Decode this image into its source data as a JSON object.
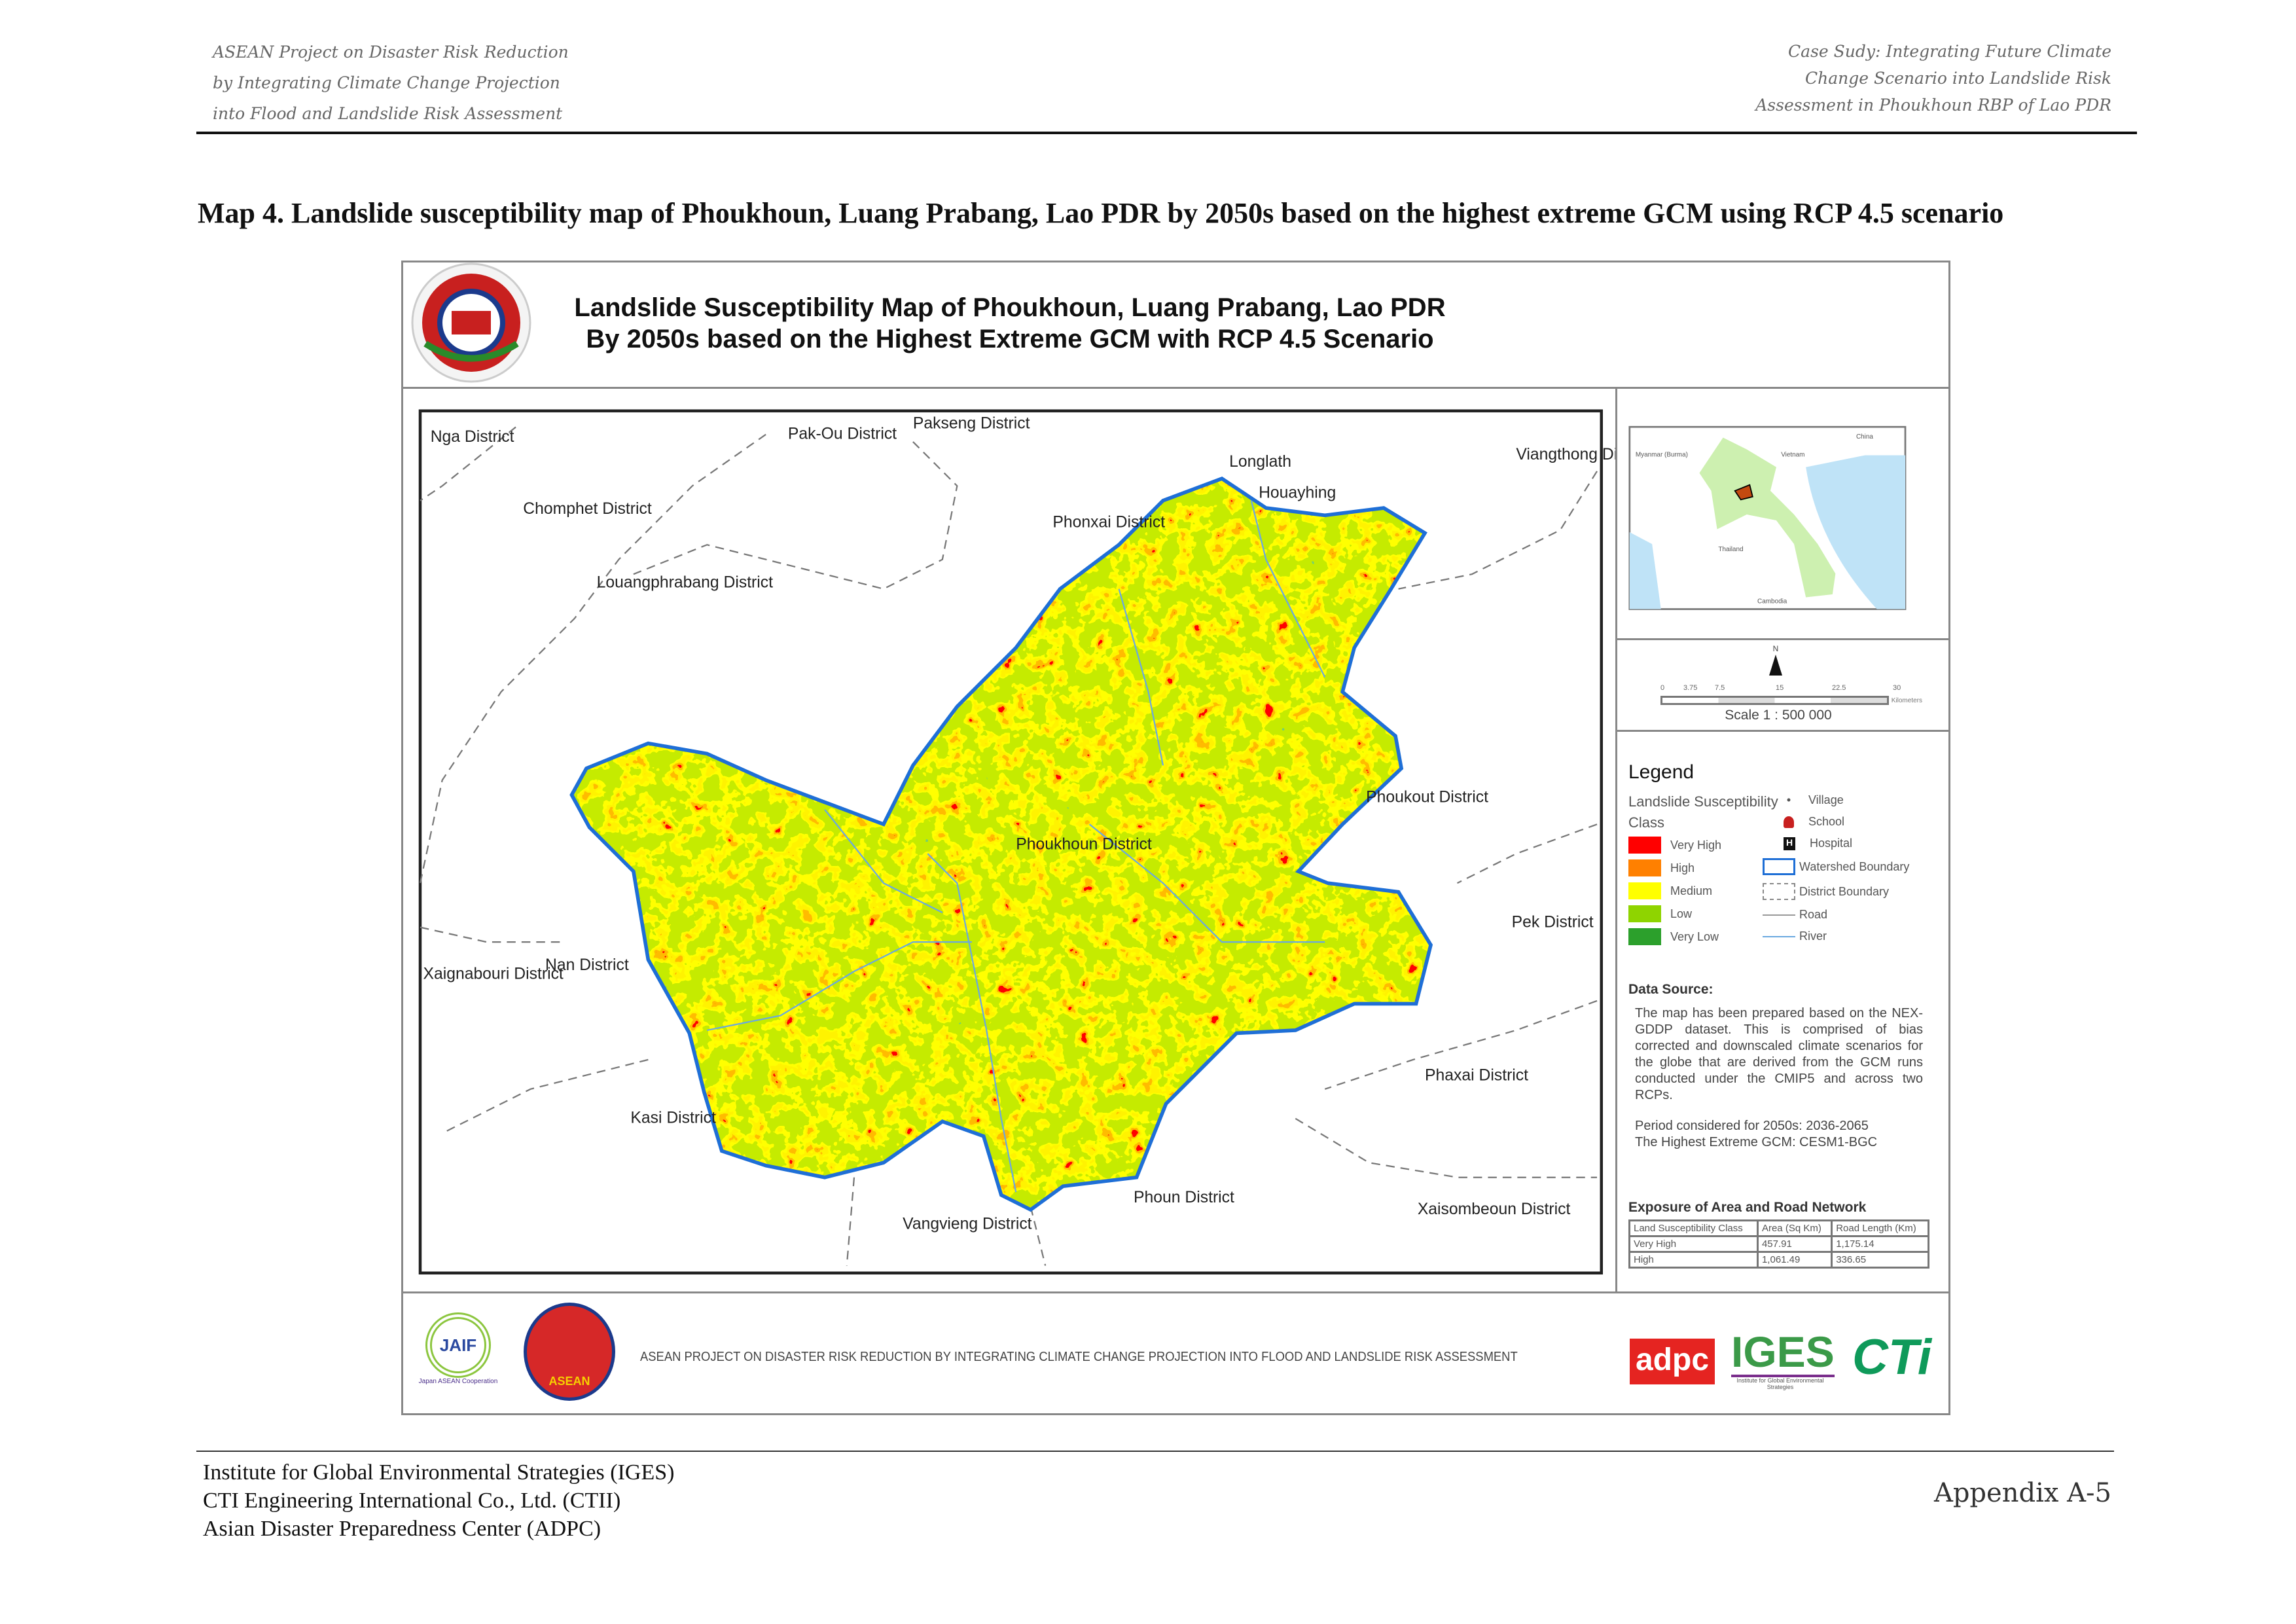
{
  "header": {
    "left_lines": [
      "ASEAN Project on Disaster Risk Reduction",
      "by Integrating Climate Change Projection",
      "into Flood and Landslide Risk Assessment"
    ],
    "right_lines": [
      "Case Sudy: Integrating Future Climate",
      "Change Scenario into Landslide Risk",
      "Assessment in Phoukhoun RBP of Lao PDR"
    ]
  },
  "caption": "Map 4. Landslide susceptibility map of Phoukhoun, Luang Prabang, Lao PDR by 2050s based on the highest extreme GCM using RCP 4.5 scenario",
  "map": {
    "title_lines": [
      "Landslide Susceptibility Map of Phoukhoun, Luang Prabang, Lao PDR",
      "By 2050s based on the Highest Extreme GCM with RCP 4.5 Scenario"
    ],
    "districts": [
      "Nga District",
      "Pak-Ou District",
      "Pakseng District",
      "Viangthong District",
      "Chomphet District",
      "Phonxai District",
      "Louangphrabang District",
      "Phoukout District",
      "Phoukhoun District",
      "Pek District",
      "Nan District",
      "Xaignabouri District",
      "Phaxai District",
      "Kasi District",
      "Phoun District",
      "Xaisombeoun District",
      "Vangvieng District",
      "Longlath",
      "Houayhing"
    ],
    "class_colors": {
      "very_low": "#2ca02c",
      "low": "#8fd400",
      "medium": "#ffff00",
      "high": "#ff8000",
      "very_high": "#ff0000"
    },
    "watershed_color": "#1f6fd6",
    "river_color": "#6aa8e0"
  },
  "inset": {
    "labels": [
      "Myanmar (Burma)",
      "Vietnam",
      "China",
      "Thailand",
      "Cambodia"
    ]
  },
  "scale": {
    "north": "N",
    "ticks": [
      "0",
      "3.75",
      "7.5",
      "15",
      "22.5",
      "30"
    ],
    "unit": "Kilometers",
    "text": "Scale 1 : 500 000"
  },
  "legend": {
    "title": "Legend",
    "class_heading": [
      "Landslide Susceptibility",
      "Class"
    ],
    "classes": [
      {
        "label": "Very High",
        "color": "#ff0000"
      },
      {
        "label": "High",
        "color": "#ff8000"
      },
      {
        "label": "Medium",
        "color": "#ffff00"
      },
      {
        "label": "Low",
        "color": "#8fd400"
      },
      {
        "label": "Very Low",
        "color": "#2ca02c"
      }
    ],
    "symbols": [
      {
        "label": "Village",
        "icon": "dot-icon"
      },
      {
        "label": "School",
        "icon": "school-icon"
      },
      {
        "label": "Hospital",
        "icon": "hospital-icon"
      },
      {
        "label": "Watershed Boundary",
        "icon": "watershed-boundary-icon"
      },
      {
        "label": "District Boundary",
        "icon": "district-boundary-icon"
      },
      {
        "label": "Road",
        "icon": "road-line-icon"
      },
      {
        "label": "River",
        "icon": "river-line-icon"
      }
    ]
  },
  "data_source": {
    "heading": "Data Source:",
    "body": "The map has been prepared based on the NEX-GDDP dataset. This is comprised of bias corrected and downscaled climate scenarios for the globe that are derived from the GCM runs conducted under the CMIP5 and across two RCPs.",
    "period": "Period considered for 2050s: 2036-2065",
    "gcm": "The Highest Extreme GCM: CESM1-BGC"
  },
  "exposure": {
    "heading": "Exposure of Area and Road Network",
    "columns": [
      "Land Susceptibility Class",
      "Area (Sq Km)",
      "Road Length (Km)"
    ],
    "rows": [
      [
        "Very High",
        "457.91",
        "1,175.14"
      ],
      [
        "High",
        "1,061.49",
        "336.65"
      ]
    ]
  },
  "bottom": {
    "banner": "ASEAN PROJECT ON DISASTER RISK REDUCTION BY INTEGRATING CLIMATE CHANGE PROJECTION INTO FLOOD AND LANDSLIDE RISK ASSESSMENT",
    "logos": [
      "JAIF",
      "ASEAN",
      "adpc",
      "IGES",
      "CTi"
    ],
    "jaif_sub": "Japan ASEAN Cooperation",
    "iges_sub": "Institute for Global Environmental Strategies"
  },
  "footer": {
    "lines": [
      "Institute  for Global Environmental Strategies (IGES)",
      "CTI Engineering International Co., Ltd. (CTII)",
      "Asian Disaster Preparedness Center (ADPC)"
    ],
    "page": "Appendix A-5"
  }
}
